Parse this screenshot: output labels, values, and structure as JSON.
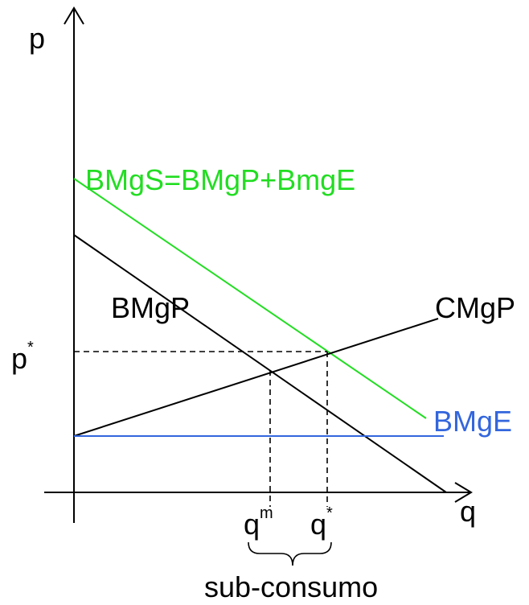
{
  "axes": {
    "y_label": "p",
    "x_label": "q"
  },
  "curves": {
    "bmgs_label": "BMgS=BMgP+BmgE",
    "bmgp_label": "BMgP",
    "cmgp_label": "CMgP",
    "bmge_label": "BMgE"
  },
  "ticks": {
    "p_star_base": "p",
    "p_star_sup": "*",
    "q_m_base": "q",
    "q_m_sup": "m",
    "q_star_base": "q",
    "q_star_sup": "*"
  },
  "annotation": {
    "brace_label": "sub-consumo"
  },
  "colors": {
    "bmgs": "#22dd22",
    "bmge": "#3366dd",
    "black": "#000000"
  }
}
